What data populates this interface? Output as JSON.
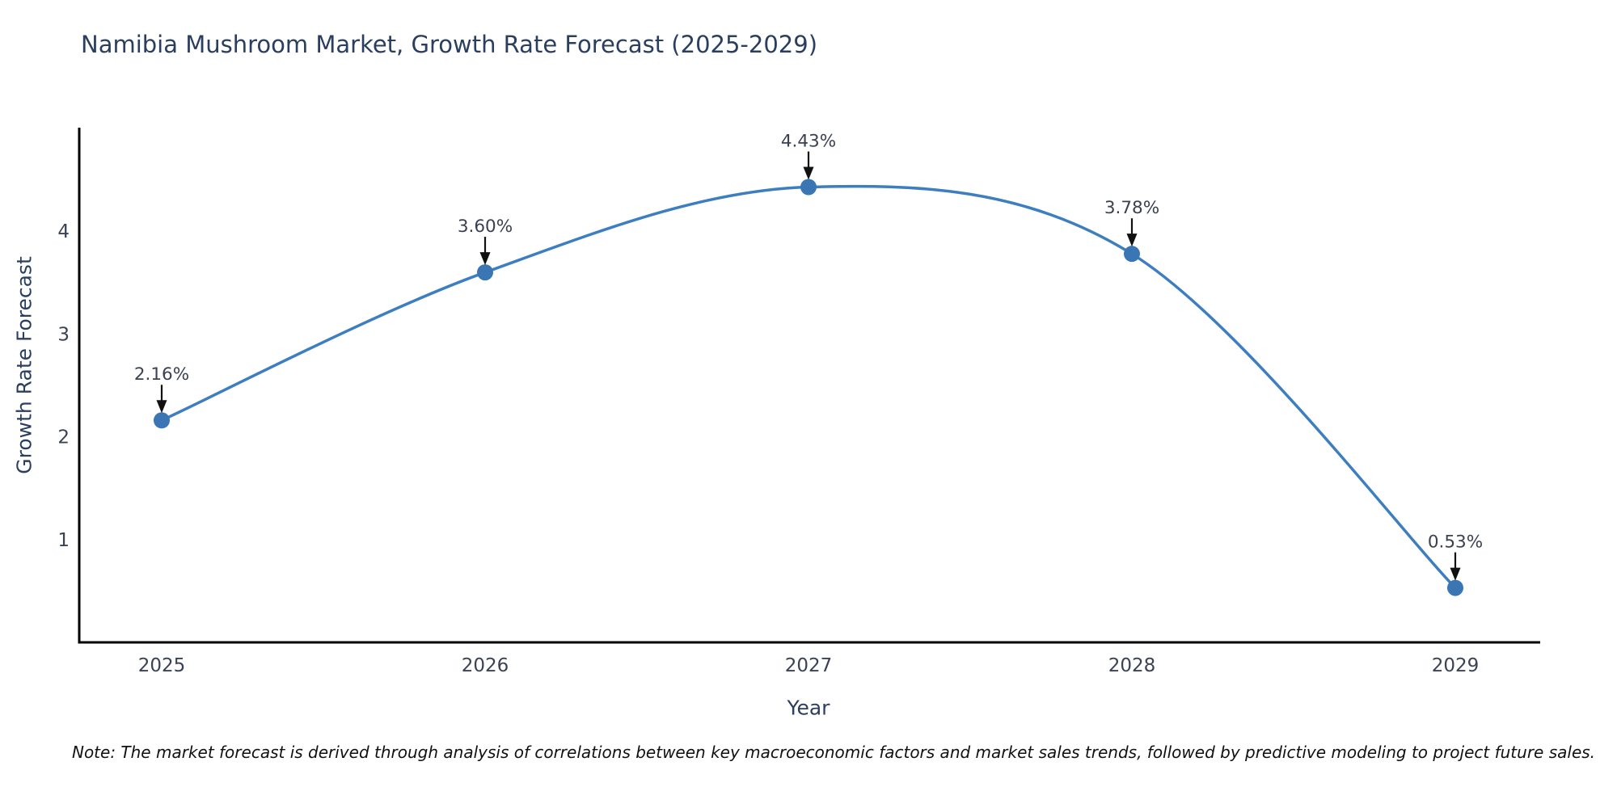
{
  "figure": {
    "note": "Note: The market forecast is derived through analysis of correlations between key macroeconomic factors and market sales trends, followed by predictive modeling to project future sales."
  },
  "chart_data": {
    "type": "line",
    "title": "Namibia Mushroom Market, Growth Rate Forecast (2025-2029)",
    "xlabel": "Year",
    "ylabel": "Growth Rate Forecast",
    "categories": [
      "2025",
      "2026",
      "2027",
      "2028",
      "2029"
    ],
    "values": [
      2.16,
      3.6,
      4.43,
      3.78,
      0.53
    ],
    "point_labels": [
      "2.16%",
      "3.60%",
      "4.43%",
      "3.78%",
      "0.53%"
    ],
    "yticks": [
      "1",
      "2",
      "3",
      "4"
    ],
    "ylim": [
      0,
      5
    ],
    "line_shape": "spline",
    "grid": false,
    "legend": "none",
    "colors": {
      "line": "#3c7ebf",
      "marker": "#3a76b4",
      "axis_line": "#000000",
      "title_text": "#2a3f5f",
      "tick_label": "#3a4354",
      "annotation_text": "#3a4150",
      "arrow": "#111111",
      "background": "#ffffff"
    }
  }
}
